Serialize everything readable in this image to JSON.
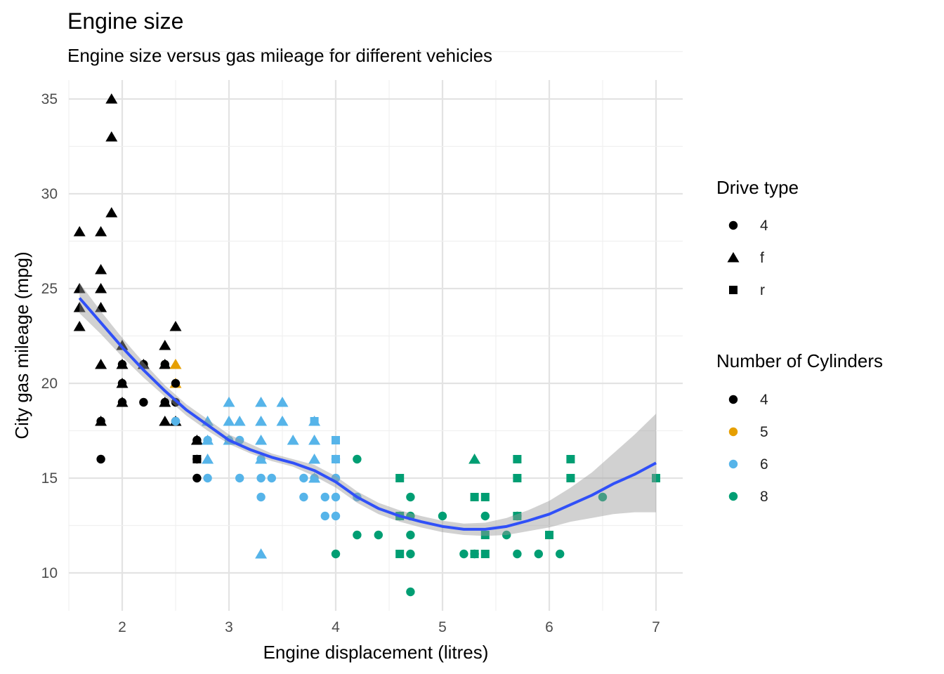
{
  "chart_data": {
    "type": "scatter",
    "title": "Engine size",
    "subtitle": "Engine size versus gas mileage for different vehicles",
    "xlabel": "Engine displacement (litres)",
    "ylabel": "City gas mileage (mpg)",
    "xlim": [
      1.5,
      7.25
    ],
    "ylim": [
      8,
      36
    ],
    "x_ticks": [
      2,
      3,
      4,
      5,
      6,
      7
    ],
    "y_ticks": [
      10,
      15,
      20,
      25,
      30,
      35
    ],
    "grid": true,
    "legend_placement": "right",
    "legends": [
      {
        "title": "Drive type",
        "entries": [
          {
            "label": "4",
            "shape": "circle"
          },
          {
            "label": "f",
            "shape": "triangle"
          },
          {
            "label": "r",
            "shape": "square"
          }
        ]
      },
      {
        "title": "Number of Cylinders",
        "entries": [
          {
            "label": "4",
            "color": "#000000"
          },
          {
            "label": "5",
            "color": "#E69F00"
          },
          {
            "label": "6",
            "color": "#56B4E9"
          },
          {
            "label": "8",
            "color": "#009E73"
          }
        ]
      }
    ],
    "points": [
      {
        "x": 1.6,
        "y": 28,
        "drv": "f",
        "cyl": "4"
      },
      {
        "x": 1.6,
        "y": 25,
        "drv": "f",
        "cyl": "4"
      },
      {
        "x": 1.6,
        "y": 24,
        "drv": "f",
        "cyl": "4"
      },
      {
        "x": 1.6,
        "y": 23,
        "drv": "f",
        "cyl": "4"
      },
      {
        "x": 1.8,
        "y": 28,
        "drv": "f",
        "cyl": "4"
      },
      {
        "x": 1.8,
        "y": 26,
        "drv": "f",
        "cyl": "4"
      },
      {
        "x": 1.8,
        "y": 25,
        "drv": "f",
        "cyl": "4"
      },
      {
        "x": 1.8,
        "y": 24,
        "drv": "f",
        "cyl": "4"
      },
      {
        "x": 1.8,
        "y": 21,
        "drv": "f",
        "cyl": "4"
      },
      {
        "x": 1.8,
        "y": 18,
        "drv": "f",
        "cyl": "4"
      },
      {
        "x": 1.8,
        "y": 18,
        "drv": "4",
        "cyl": "4"
      },
      {
        "x": 1.8,
        "y": 16,
        "drv": "4",
        "cyl": "4"
      },
      {
        "x": 1.9,
        "y": 35,
        "drv": "f",
        "cyl": "4"
      },
      {
        "x": 1.9,
        "y": 33,
        "drv": "f",
        "cyl": "4"
      },
      {
        "x": 1.9,
        "y": 29,
        "drv": "f",
        "cyl": "4"
      },
      {
        "x": 2.0,
        "y": 22,
        "drv": "f",
        "cyl": "4"
      },
      {
        "x": 2.0,
        "y": 21,
        "drv": "f",
        "cyl": "4"
      },
      {
        "x": 2.0,
        "y": 20,
        "drv": "f",
        "cyl": "4"
      },
      {
        "x": 2.0,
        "y": 19,
        "drv": "f",
        "cyl": "4"
      },
      {
        "x": 2.0,
        "y": 21,
        "drv": "4",
        "cyl": "4"
      },
      {
        "x": 2.0,
        "y": 20,
        "drv": "4",
        "cyl": "4"
      },
      {
        "x": 2.0,
        "y": 19,
        "drv": "4",
        "cyl": "4"
      },
      {
        "x": 2.2,
        "y": 21,
        "drv": "f",
        "cyl": "4"
      },
      {
        "x": 2.2,
        "y": 21,
        "drv": "4",
        "cyl": "4"
      },
      {
        "x": 2.2,
        "y": 19,
        "drv": "4",
        "cyl": "4"
      },
      {
        "x": 2.4,
        "y": 22,
        "drv": "f",
        "cyl": "4"
      },
      {
        "x": 2.4,
        "y": 21,
        "drv": "f",
        "cyl": "4"
      },
      {
        "x": 2.4,
        "y": 19,
        "drv": "f",
        "cyl": "4"
      },
      {
        "x": 2.4,
        "y": 18,
        "drv": "f",
        "cyl": "4"
      },
      {
        "x": 2.4,
        "y": 21,
        "drv": "4",
        "cyl": "4"
      },
      {
        "x": 2.4,
        "y": 19,
        "drv": "4",
        "cyl": "4"
      },
      {
        "x": 2.5,
        "y": 23,
        "drv": "f",
        "cyl": "4"
      },
      {
        "x": 2.5,
        "y": 21,
        "drv": "f",
        "cyl": "5"
      },
      {
        "x": 2.5,
        "y": 20,
        "drv": "f",
        "cyl": "5"
      },
      {
        "x": 2.5,
        "y": 20,
        "drv": "4",
        "cyl": "4"
      },
      {
        "x": 2.5,
        "y": 19,
        "drv": "4",
        "cyl": "4"
      },
      {
        "x": 2.5,
        "y": 18,
        "drv": "4",
        "cyl": "4"
      },
      {
        "x": 2.5,
        "y": 18,
        "drv": "f",
        "cyl": "4"
      },
      {
        "x": 2.5,
        "y": 18,
        "drv": "4",
        "cyl": "6"
      },
      {
        "x": 2.7,
        "y": 17,
        "drv": "4",
        "cyl": "4"
      },
      {
        "x": 2.7,
        "y": 16,
        "drv": "4",
        "cyl": "4"
      },
      {
        "x": 2.7,
        "y": 15,
        "drv": "4",
        "cyl": "4"
      },
      {
        "x": 2.7,
        "y": 17,
        "drv": "f",
        "cyl": "4"
      },
      {
        "x": 2.7,
        "y": 16,
        "drv": "r",
        "cyl": "4"
      },
      {
        "x": 2.8,
        "y": 18,
        "drv": "f",
        "cyl": "6"
      },
      {
        "x": 2.8,
        "y": 17,
        "drv": "f",
        "cyl": "6"
      },
      {
        "x": 2.8,
        "y": 16,
        "drv": "f",
        "cyl": "6"
      },
      {
        "x": 2.8,
        "y": 17,
        "drv": "4",
        "cyl": "6"
      },
      {
        "x": 2.8,
        "y": 15,
        "drv": "4",
        "cyl": "6"
      },
      {
        "x": 3.0,
        "y": 19,
        "drv": "f",
        "cyl": "6"
      },
      {
        "x": 3.0,
        "y": 18,
        "drv": "f",
        "cyl": "6"
      },
      {
        "x": 3.0,
        "y": 17,
        "drv": "f",
        "cyl": "6"
      },
      {
        "x": 3.0,
        "y": 17,
        "drv": "4",
        "cyl": "6"
      },
      {
        "x": 3.1,
        "y": 18,
        "drv": "f",
        "cyl": "6"
      },
      {
        "x": 3.1,
        "y": 17,
        "drv": "4",
        "cyl": "6"
      },
      {
        "x": 3.1,
        "y": 15,
        "drv": "4",
        "cyl": "6"
      },
      {
        "x": 3.3,
        "y": 19,
        "drv": "f",
        "cyl": "6"
      },
      {
        "x": 3.3,
        "y": 18,
        "drv": "f",
        "cyl": "6"
      },
      {
        "x": 3.3,
        "y": 17,
        "drv": "f",
        "cyl": "6"
      },
      {
        "x": 3.3,
        "y": 16,
        "drv": "f",
        "cyl": "6"
      },
      {
        "x": 3.3,
        "y": 11,
        "drv": "f",
        "cyl": "6"
      },
      {
        "x": 3.3,
        "y": 16,
        "drv": "4",
        "cyl": "6"
      },
      {
        "x": 3.3,
        "y": 15,
        "drv": "4",
        "cyl": "6"
      },
      {
        "x": 3.3,
        "y": 14,
        "drv": "4",
        "cyl": "6"
      },
      {
        "x": 3.4,
        "y": 15,
        "drv": "4",
        "cyl": "6"
      },
      {
        "x": 3.5,
        "y": 19,
        "drv": "f",
        "cyl": "6"
      },
      {
        "x": 3.5,
        "y": 18,
        "drv": "f",
        "cyl": "6"
      },
      {
        "x": 3.6,
        "y": 17,
        "drv": "f",
        "cyl": "6"
      },
      {
        "x": 3.7,
        "y": 15,
        "drv": "4",
        "cyl": "6"
      },
      {
        "x": 3.7,
        "y": 14,
        "drv": "4",
        "cyl": "6"
      },
      {
        "x": 3.8,
        "y": 18,
        "drv": "f",
        "cyl": "6"
      },
      {
        "x": 3.8,
        "y": 17,
        "drv": "f",
        "cyl": "6"
      },
      {
        "x": 3.8,
        "y": 16,
        "drv": "f",
        "cyl": "6"
      },
      {
        "x": 3.8,
        "y": 15,
        "drv": "f",
        "cyl": "6"
      },
      {
        "x": 3.8,
        "y": 18,
        "drv": "r",
        "cyl": "6"
      },
      {
        "x": 3.8,
        "y": 15,
        "drv": "4",
        "cyl": "6"
      },
      {
        "x": 3.9,
        "y": 14,
        "drv": "4",
        "cyl": "6"
      },
      {
        "x": 3.9,
        "y": 13,
        "drv": "4",
        "cyl": "6"
      },
      {
        "x": 4.0,
        "y": 17,
        "drv": "r",
        "cyl": "6"
      },
      {
        "x": 4.0,
        "y": 16,
        "drv": "r",
        "cyl": "6"
      },
      {
        "x": 4.0,
        "y": 16,
        "drv": "4",
        "cyl": "6"
      },
      {
        "x": 4.0,
        "y": 15,
        "drv": "4",
        "cyl": "6"
      },
      {
        "x": 4.0,
        "y": 14,
        "drv": "4",
        "cyl": "6"
      },
      {
        "x": 4.0,
        "y": 13,
        "drv": "4",
        "cyl": "6"
      },
      {
        "x": 4.0,
        "y": 11,
        "drv": "4",
        "cyl": "8"
      },
      {
        "x": 4.2,
        "y": 16,
        "drv": "4",
        "cyl": "8"
      },
      {
        "x": 4.2,
        "y": 14,
        "drv": "4",
        "cyl": "6"
      },
      {
        "x": 4.2,
        "y": 12,
        "drv": "4",
        "cyl": "8"
      },
      {
        "x": 4.4,
        "y": 12,
        "drv": "4",
        "cyl": "8"
      },
      {
        "x": 4.6,
        "y": 15,
        "drv": "r",
        "cyl": "8"
      },
      {
        "x": 4.6,
        "y": 13,
        "drv": "4",
        "cyl": "8"
      },
      {
        "x": 4.6,
        "y": 13,
        "drv": "r",
        "cyl": "8"
      },
      {
        "x": 4.6,
        "y": 11,
        "drv": "r",
        "cyl": "8"
      },
      {
        "x": 4.7,
        "y": 14,
        "drv": "4",
        "cyl": "8"
      },
      {
        "x": 4.7,
        "y": 13,
        "drv": "4",
        "cyl": "8"
      },
      {
        "x": 4.7,
        "y": 12,
        "drv": "4",
        "cyl": "8"
      },
      {
        "x": 4.7,
        "y": 11,
        "drv": "4",
        "cyl": "8"
      },
      {
        "x": 4.7,
        "y": 9,
        "drv": "4",
        "cyl": "8"
      },
      {
        "x": 5.0,
        "y": 13,
        "drv": "4",
        "cyl": "8"
      },
      {
        "x": 5.2,
        "y": 11,
        "drv": "4",
        "cyl": "8"
      },
      {
        "x": 5.3,
        "y": 16,
        "drv": "f",
        "cyl": "8"
      },
      {
        "x": 5.3,
        "y": 14,
        "drv": "r",
        "cyl": "8"
      },
      {
        "x": 5.3,
        "y": 11,
        "drv": "r",
        "cyl": "8"
      },
      {
        "x": 5.3,
        "y": 11,
        "drv": "4",
        "cyl": "8"
      },
      {
        "x": 5.4,
        "y": 14,
        "drv": "r",
        "cyl": "8"
      },
      {
        "x": 5.4,
        "y": 13,
        "drv": "4",
        "cyl": "8"
      },
      {
        "x": 5.4,
        "y": 12,
        "drv": "r",
        "cyl": "8"
      },
      {
        "x": 5.4,
        "y": 11,
        "drv": "r",
        "cyl": "8"
      },
      {
        "x": 5.6,
        "y": 12,
        "drv": "4",
        "cyl": "8"
      },
      {
        "x": 5.7,
        "y": 16,
        "drv": "r",
        "cyl": "8"
      },
      {
        "x": 5.7,
        "y": 15,
        "drv": "r",
        "cyl": "8"
      },
      {
        "x": 5.7,
        "y": 13,
        "drv": "r",
        "cyl": "8"
      },
      {
        "x": 5.7,
        "y": 13,
        "drv": "4",
        "cyl": "8"
      },
      {
        "x": 5.7,
        "y": 11,
        "drv": "4",
        "cyl": "8"
      },
      {
        "x": 5.9,
        "y": 11,
        "drv": "4",
        "cyl": "8"
      },
      {
        "x": 6.0,
        "y": 12,
        "drv": "r",
        "cyl": "8"
      },
      {
        "x": 6.1,
        "y": 11,
        "drv": "4",
        "cyl": "8"
      },
      {
        "x": 6.2,
        "y": 16,
        "drv": "r",
        "cyl": "8"
      },
      {
        "x": 6.2,
        "y": 15,
        "drv": "r",
        "cyl": "8"
      },
      {
        "x": 6.5,
        "y": 14,
        "drv": "4",
        "cyl": "8"
      },
      {
        "x": 7.0,
        "y": 15,
        "drv": "r",
        "cyl": "8"
      }
    ],
    "smooth": {
      "x": [
        1.6,
        1.8,
        2.0,
        2.2,
        2.4,
        2.6,
        2.8,
        3.0,
        3.2,
        3.4,
        3.6,
        3.8,
        4.0,
        4.2,
        4.4,
        4.6,
        4.8,
        5.0,
        5.2,
        5.4,
        5.6,
        5.8,
        6.0,
        6.2,
        6.4,
        6.6,
        6.8,
        7.0
      ],
      "y": [
        24.5,
        23.2,
        21.9,
        20.7,
        19.6,
        18.6,
        17.8,
        17.0,
        16.5,
        16.1,
        15.8,
        15.4,
        14.8,
        14.0,
        13.4,
        13.0,
        12.7,
        12.45,
        12.3,
        12.3,
        12.45,
        12.75,
        13.1,
        13.6,
        14.1,
        14.7,
        15.2,
        15.8
      ],
      "lower": [
        23.7,
        22.6,
        21.4,
        20.3,
        19.3,
        18.3,
        17.5,
        16.8,
        16.3,
        15.9,
        15.6,
        15.1,
        14.5,
        13.7,
        13.1,
        12.7,
        12.4,
        12.15,
        12.0,
        11.95,
        12.0,
        12.2,
        12.4,
        12.7,
        12.9,
        13.1,
        13.2,
        13.2
      ],
      "upper": [
        25.3,
        23.8,
        22.4,
        21.1,
        19.9,
        18.9,
        18.1,
        17.3,
        16.8,
        16.3,
        16.0,
        15.7,
        15.1,
        14.3,
        13.7,
        13.3,
        13.0,
        12.75,
        12.6,
        12.65,
        12.9,
        13.3,
        13.8,
        14.5,
        15.3,
        16.3,
        17.3,
        18.4
      ],
      "line_color": "#3050F8",
      "ribbon_color": "#999999"
    }
  }
}
